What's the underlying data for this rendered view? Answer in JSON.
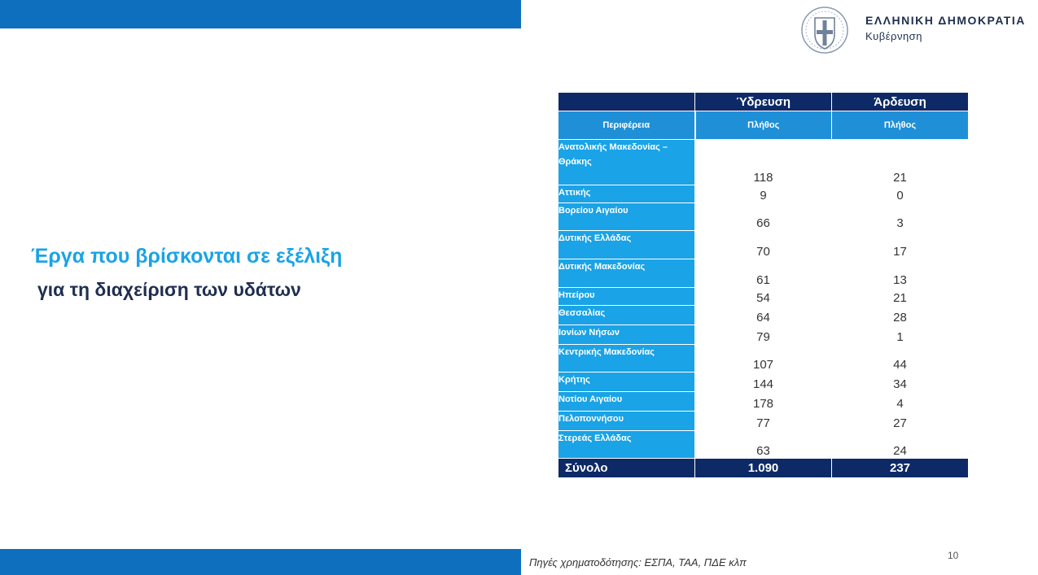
{
  "header": {
    "gov_name": "ΕΛΛΗΝΙΚΗ ΔΗΜΟΚΡΑΤΙΑ",
    "gov_sub": "Κυβέρνηση",
    "logo_icon": "greek-coat-of-arms-icon"
  },
  "title": {
    "line1": "Έργα που βρίσκονται σε εξέλιξη",
    "line2": "για τη διαχείριση των υδάτων"
  },
  "table": {
    "group_headers": [
      "",
      "Ύδρευση",
      "Άρδευση"
    ],
    "sub_headers": [
      "Περιφέρεια",
      "Πλήθος",
      "Πλήθος"
    ],
    "rows": [
      {
        "region": "Ανατολικής Μακεδονίας – Θράκης",
        "water_supply": "118",
        "irrigation": "21"
      },
      {
        "region": "Αττικής",
        "water_supply": "9",
        "irrigation": "0"
      },
      {
        "region": "Βορείου Αιγαίου",
        "water_supply": "66",
        "irrigation": "3"
      },
      {
        "region": "Δυτικής Ελλάδας",
        "water_supply": "70",
        "irrigation": "17"
      },
      {
        "region": "Δυτικής Μακεδονίας",
        "water_supply": "61",
        "irrigation": "13"
      },
      {
        "region": "Ηπείρου",
        "water_supply": "54",
        "irrigation": "21"
      },
      {
        "region": "Θεσσαλίας",
        "water_supply": "64",
        "irrigation": "28"
      },
      {
        "region": "Ιονίων Νήσων",
        "water_supply": "79",
        "irrigation": "1"
      },
      {
        "region": "Κεντρικής Μακεδονίας",
        "water_supply": "107",
        "irrigation": "44"
      },
      {
        "region": "Κρήτης",
        "water_supply": "144",
        "irrigation": "34"
      },
      {
        "region": "Νοτίου Αιγαίου",
        "water_supply": "178",
        "irrigation": "4"
      },
      {
        "region": "Πελοποννήσου",
        "water_supply": "77",
        "irrigation": "27"
      },
      {
        "region": "Στερεάς Ελλάδας",
        "water_supply": "63",
        "irrigation": "24"
      }
    ],
    "total": {
      "label": "Σύνολο",
      "water_supply": "1.090",
      "irrigation": "237"
    }
  },
  "footer": {
    "source": "Πηγές χρηματοδότησης: ΕΣΠΑ, ΤΑΑ, ΠΔΕ κλπ",
    "page_number": "10"
  },
  "colors": {
    "brand_blue": "#0f6fbf",
    "light_blue": "#1aa3e6",
    "navy": "#0d2a66",
    "dark_text": "#1f2f4f"
  }
}
